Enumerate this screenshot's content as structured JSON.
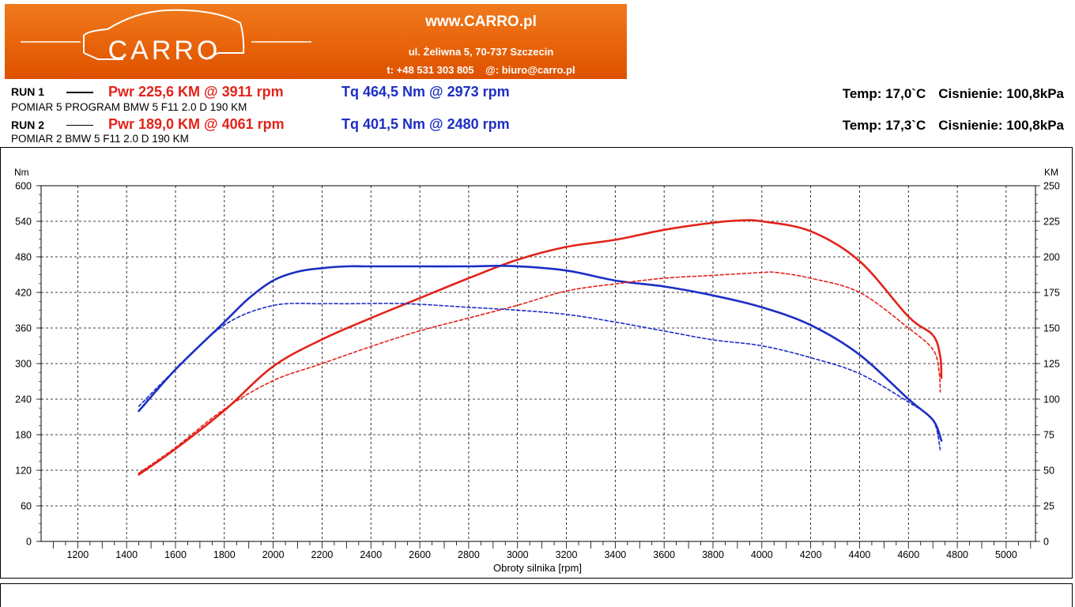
{
  "header": {
    "logo_text": "CARRO",
    "site": "www.CARRO.pl",
    "address": "ul. Żeliwna 5, 70-737 Szczecin",
    "phone": "t: +48 531 303 805",
    "email": "@: biuro@carro.pl"
  },
  "runs": [
    {
      "label": "RUN 1",
      "pwr": "Pwr  225,6 KM @ 3911 rpm",
      "tq": "Tq 464,5 Nm @ 2973 rpm",
      "desc": "POMIAR 5 PROGRAM BMW 5 F11 2.0 D 190 KM",
      "temp": "Temp: 17,0`C",
      "pressure": "Cisnienie: 100,8kPa"
    },
    {
      "label": "RUN 2",
      "pwr": "Pwr  189,0 KM @ 4061 rpm",
      "tq": "Tq 401,5 Nm @ 2480 rpm",
      "desc": "POMIAR 2 BMW 5 F11 2.0 D 190 KM",
      "temp": "Temp: 17,3`C",
      "pressure": "Cisnienie: 100,8kPa"
    }
  ],
  "colors": {
    "power": "#e2231a",
    "torque": "#1c2ec4",
    "banner": "#e8630a"
  },
  "chart_data": {
    "type": "line",
    "xlabel": "Obroty silnika [rpm]",
    "ylabel_left": "Nm",
    "ylabel_right": "KM",
    "xlim": [
      1050,
      5120
    ],
    "ylim_left": [
      0,
      600
    ],
    "ylim_right": [
      0,
      250
    ],
    "x_ticks": [
      1200,
      1400,
      1600,
      1800,
      2000,
      2200,
      2400,
      2600,
      2800,
      3000,
      3200,
      3400,
      3600,
      3800,
      4000,
      4200,
      4400,
      4600,
      4800,
      5000
    ],
    "y_ticks_left": [
      0,
      60,
      120,
      180,
      240,
      300,
      360,
      420,
      480,
      540,
      600
    ],
    "y_ticks_right": [
      0,
      25,
      50,
      75,
      100,
      125,
      150,
      175,
      200,
      225,
      250
    ],
    "grid": true,
    "series": [
      {
        "name": "Run 1 Power (KM)",
        "axis": "right",
        "color": "#e2231a",
        "dash": false,
        "x": [
          1450,
          1600,
          1800,
          2000,
          2200,
          2400,
          2600,
          2800,
          3000,
          3200,
          3400,
          3600,
          3800,
          3911,
          4000,
          4200,
          4400,
          4600,
          4700,
          4730,
          4735
        ],
        "y": [
          47,
          65,
          92,
          123,
          142,
          157,
          171,
          185,
          198,
          207,
          212,
          219,
          224,
          225.6,
          225,
          218,
          197,
          158,
          145,
          130,
          115
        ]
      },
      {
        "name": "Run 1 Torque (Nm)",
        "axis": "left",
        "color": "#1c2ec4",
        "dash": false,
        "x": [
          1450,
          1600,
          1800,
          1900,
          2000,
          2100,
          2200,
          2300,
          2400,
          2600,
          2800,
          2973,
          3200,
          3400,
          3600,
          3800,
          4000,
          4200,
          4400,
          4600,
          4700,
          4735
        ],
        "y": [
          220,
          290,
          370,
          410,
          440,
          455,
          461,
          464,
          464,
          464,
          464,
          464.5,
          457,
          440,
          430,
          415,
          395,
          365,
          315,
          240,
          205,
          170
        ]
      },
      {
        "name": "Run 2 Power (KM)",
        "axis": "right",
        "color": "#e2231a",
        "dash": true,
        "x": [
          1450,
          1600,
          1800,
          2000,
          2200,
          2400,
          2600,
          2800,
          3000,
          3200,
          3400,
          3600,
          3800,
          4000,
          4061,
          4200,
          4400,
          4600,
          4700,
          4725,
          4730
        ],
        "y": [
          48,
          66,
          93,
          113,
          125,
          137,
          148,
          157,
          166,
          176,
          181,
          185,
          187,
          189,
          189,
          185,
          175,
          150,
          135,
          120,
          105
        ]
      },
      {
        "name": "Run 2 Torque (Nm)",
        "axis": "left",
        "color": "#1c2ec4",
        "dash": true,
        "x": [
          1450,
          1600,
          1800,
          2000,
          2200,
          2300,
          2480,
          2600,
          2800,
          3000,
          3200,
          3400,
          3600,
          3800,
          4000,
          4200,
          4400,
          4600,
          4700,
          4730
        ],
        "y": [
          228,
          290,
          365,
          398,
          401,
          401,
          401.5,
          400,
          395,
          390,
          383,
          370,
          355,
          340,
          330,
          310,
          283,
          235,
          205,
          155
        ]
      }
    ]
  }
}
